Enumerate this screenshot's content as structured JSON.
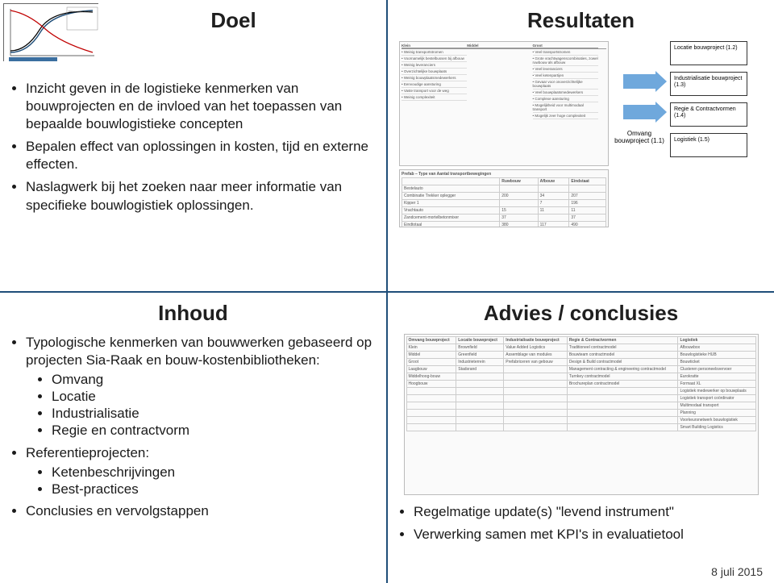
{
  "titles": {
    "tl": "Doel",
    "tr": "Resultaten",
    "bl": "Inhoud",
    "br": "Advies / conclusies"
  },
  "doel": {
    "b1": "Inzicht geven in de logistieke kenmerken van bouwprojecten en de invloed van het toepassen van bepaalde bouwlogistieke concepten",
    "b2": "Bepalen effect van oplossingen in kosten, tijd en externe effecten.",
    "b3": "Naslagwerk bij het zoeken naar meer informatie van specifieke bouwlogistiek oplossingen."
  },
  "inhoud": {
    "b1": "Typologische kenmerken van bouwwerken gebaseerd op projecten Sia-Raak en bouw-kostenbibliotheken:",
    "s1": "Omvang",
    "s2": "Locatie",
    "s3": "Industrialisatie",
    "s4": "Regie en contractvorm",
    "b2": "Referentieprojecten:",
    "s5": "Ketenbeschrijvingen",
    "s6": "Best-practices",
    "b3": "Conclusies en vervolgstappen"
  },
  "resultaten": {
    "mid_label": "Omvang bouwproject (1.1)",
    "box1": "Locatie bouwproject (1.2)",
    "box2": "Industrialisatie bouwproject (1.3)",
    "box3": "Regie & Contractvormen (1.4)",
    "box4": "Logistiek (1.5)",
    "comp_headers": {
      "c1": "Klein",
      "c2": "Middel",
      "c3": "Groot"
    },
    "klein": [
      "Weinig transportstromen",
      "Voornamelijk bestelbussen bij afbouw",
      "Weinig leveranciers",
      "Overzichtelijke bouwplaats",
      "Weinig bouwplaatsmedewerkers",
      "Eenvoudige aansturing",
      "Vaste transport voor de weg",
      "Weinig complexiteit"
    ],
    "groot": [
      "Veel transportstromen",
      "Grote vrachtwagenscombinaties, zowel ruwbouw als afbouw",
      "Veel leveranciers",
      "Veel ketenpartijen",
      "Gevaar voor onoverzichtelijke bouwplaats",
      "Veel bouwplaatsmedewerkers",
      "Complexe aansturing",
      "Mogelijkheid voor multimodaal transport",
      "Mogelijk zeer hoge complexiteit"
    ],
    "prefab_title": "Prefab – Type van Aantal transportbewegingen",
    "prefab_cols": [
      "",
      "Ruwbouw",
      "Afbouw",
      "Eindstaat"
    ],
    "prefab_rows": [
      [
        "Bestelauto",
        "",
        "",
        ""
      ],
      [
        "Combinatie Trekker oplegger",
        "200",
        "34",
        "207"
      ],
      [
        "Kipper 1",
        "",
        "7",
        "196"
      ],
      [
        "Vrachtauto",
        "15",
        "11",
        "11"
      ],
      [
        "Zandcement-mortelbetonmixer",
        "37",
        "",
        "37"
      ],
      [
        "Eindtotaal",
        "380",
        "117",
        "490"
      ]
    ]
  },
  "advies": {
    "b1": "Regelmatige update(s) \"levend instrument\"",
    "b2": "Verwerking samen met KPI's in evaluatietool",
    "table_cols": [
      "Omvang bouwproject",
      "Locatie bouwproject",
      "Industrialisatie bouwproject",
      "Regie & Contractvormen",
      "Logistiek"
    ],
    "table_rows": [
      [
        "Klein",
        "Brownfield",
        "Value Added Logistics",
        "Traditioneel contractmodel",
        "Afbouwbox"
      ],
      [
        "Middel",
        "Greenfield",
        "Assemblage van modules",
        "Bouwteam contractmodel",
        "Bouwlogistieke HUB"
      ],
      [
        "Groot",
        "Industrieterrein",
        "Prefabriceren van gebouw",
        "Design & Build contractmodel",
        "Bouwticket"
      ],
      [
        "Laagbouw",
        "Stadsrand",
        "",
        "Management contracting & engineering contractmodel",
        "Clusteren personeelsvervoer"
      ],
      [
        "Middelhoog-bouw",
        "",
        "",
        "Turnkey contractmodel",
        "Eurokratte"
      ],
      [
        "Hoogbouw",
        "",
        "",
        "Brochureplan contractmodel",
        "Formaat XL"
      ],
      [
        "",
        "",
        "",
        "",
        "Logistiek medewerker op bouwplaats"
      ],
      [
        "",
        "",
        "",
        "",
        "Logistiek transport coördinator"
      ],
      [
        "",
        "",
        "",
        "",
        "Multimodaal transport"
      ],
      [
        "",
        "",
        "",
        "",
        "Planning"
      ],
      [
        "",
        "",
        "",
        "",
        "Voorkeursnetwerk bouwlogistiek"
      ],
      [
        "",
        "",
        "",
        "",
        "Smart Building Logistics"
      ]
    ]
  },
  "footer_date": "8 juli 2015",
  "colors": {
    "divider": "#1f4e79",
    "arrow": "#6fa8dc",
    "text": "#1a1a1a"
  }
}
